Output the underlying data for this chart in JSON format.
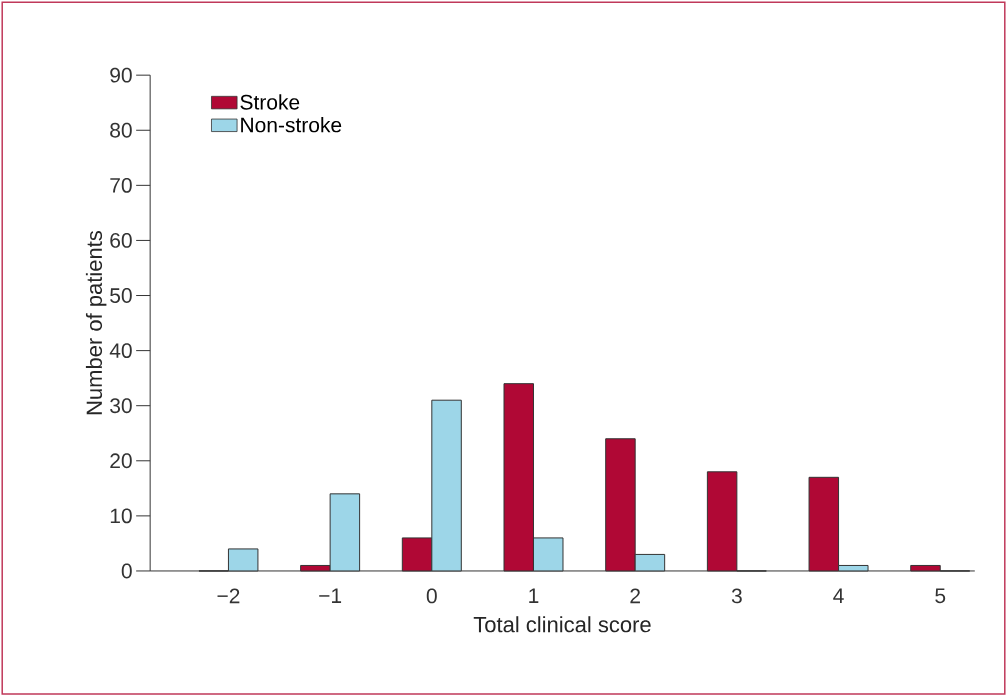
{
  "chart_data": {
    "type": "bar",
    "xlabel": "Total clinical score",
    "ylabel": "Number of patients",
    "categories": [
      "−2",
      "−1",
      "0",
      "1",
      "2",
      "3",
      "4",
      "5"
    ],
    "series": [
      {
        "name": "Stroke",
        "color": "#b00835",
        "values": [
          0,
          1,
          6,
          34,
          24,
          18,
          17,
          1
        ]
      },
      {
        "name": "Non-stroke",
        "color": "#9dd6e8",
        "values": [
          4,
          14,
          31,
          6,
          3,
          0,
          1,
          0
        ]
      }
    ],
    "ylim": [
      0,
      90
    ],
    "yticks": [
      0,
      10,
      20,
      30,
      40,
      50,
      60,
      70,
      80,
      90
    ],
    "legend": "top left"
  }
}
